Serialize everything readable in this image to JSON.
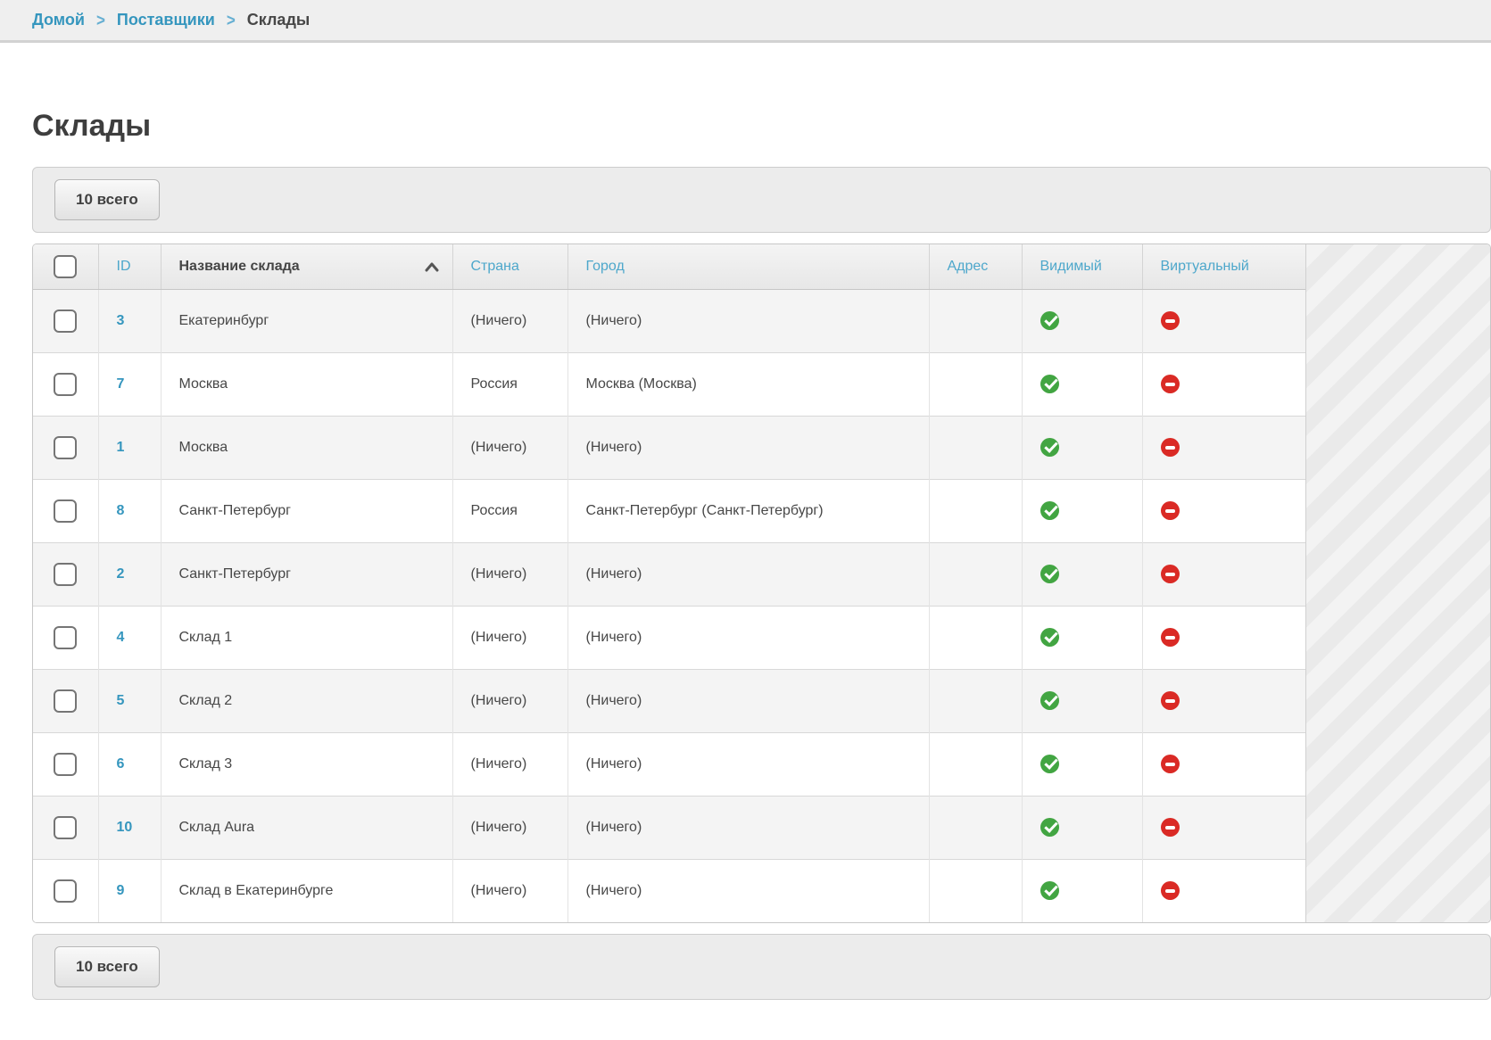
{
  "breadcrumb": {
    "separator": ">",
    "items": [
      {
        "label": "Домой"
      },
      {
        "label": "Поставщики"
      }
    ],
    "current": "Склады"
  },
  "page": {
    "title": "Склады"
  },
  "toolbar": {
    "count_label": "10 всего"
  },
  "footer_toolbar": {
    "count_label": "10 всего"
  },
  "table": {
    "columns": [
      {
        "key": "select",
        "label": ""
      },
      {
        "key": "id",
        "label": "ID"
      },
      {
        "key": "name",
        "label": "Название склада",
        "sort": "asc"
      },
      {
        "key": "country",
        "label": "Страна"
      },
      {
        "key": "city",
        "label": "Город"
      },
      {
        "key": "address",
        "label": "Адрес"
      },
      {
        "key": "visible",
        "label": "Видимый"
      },
      {
        "key": "virtual",
        "label": "Виртуальный"
      }
    ],
    "rows": [
      {
        "id": "3",
        "name": "Екатеринбург",
        "country": "(Ничего)",
        "city": "(Ничего)",
        "address": "",
        "visible": true,
        "virtual": false
      },
      {
        "id": "7",
        "name": "Москва",
        "country": "Россия",
        "city": "Москва (Москва)",
        "address": "",
        "visible": true,
        "virtual": false
      },
      {
        "id": "1",
        "name": "Москва",
        "country": "(Ничего)",
        "city": "(Ничего)",
        "address": "",
        "visible": true,
        "virtual": false
      },
      {
        "id": "8",
        "name": "Санкт-Петербург",
        "country": "Россия",
        "city": "Санкт-Петербург (Санкт-Петербург)",
        "address": "",
        "visible": true,
        "virtual": false
      },
      {
        "id": "2",
        "name": "Санкт-Петербург",
        "country": "(Ничего)",
        "city": "(Ничего)",
        "address": "",
        "visible": true,
        "virtual": false
      },
      {
        "id": "4",
        "name": "Склад 1",
        "country": "(Ничего)",
        "city": "(Ничего)",
        "address": "",
        "visible": true,
        "virtual": false
      },
      {
        "id": "5",
        "name": "Склад 2",
        "country": "(Ничего)",
        "city": "(Ничего)",
        "address": "",
        "visible": true,
        "virtual": false
      },
      {
        "id": "6",
        "name": "Склад 3",
        "country": "(Ничего)",
        "city": "(Ничего)",
        "address": "",
        "visible": true,
        "virtual": false
      },
      {
        "id": "10",
        "name": "Склад Aura",
        "country": "(Ничего)",
        "city": "(Ничего)",
        "address": "",
        "visible": true,
        "virtual": false
      },
      {
        "id": "9",
        "name": "Склад в Екатеринбурге",
        "country": "(Ничего)",
        "city": "(Ничего)",
        "address": "",
        "visible": true,
        "virtual": false
      }
    ]
  },
  "colors": {
    "accent_blue": "#3596be",
    "header_link_blue": "#4da7cb",
    "enabled_green": "#42a542",
    "disabled_red": "#da2a25"
  }
}
